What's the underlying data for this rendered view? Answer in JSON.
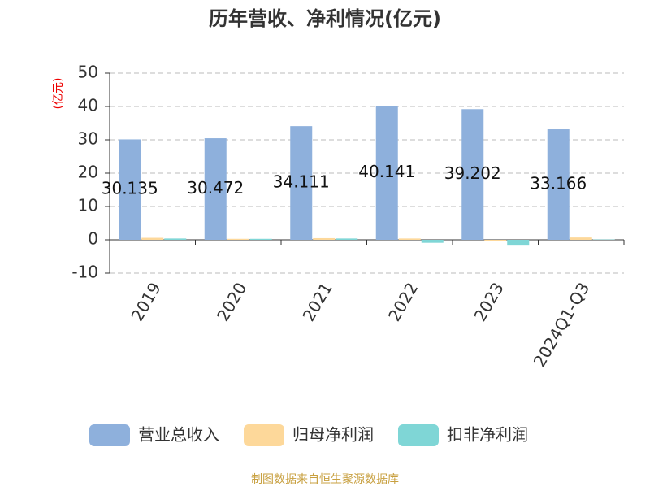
{
  "chart_data": {
    "type": "bar",
    "title": "历年营收、净利情况(亿元)",
    "y_label": "(亿元)",
    "categories": [
      "2019",
      "2020",
      "2021",
      "2022",
      "2023",
      "2024Q1-Q3"
    ],
    "series": [
      {
        "name": "营业总收入",
        "color": "#8eb0dc",
        "values": [
          30.135,
          30.472,
          34.111,
          40.141,
          39.202,
          33.166
        ],
        "show_labels": true
      },
      {
        "name": "归母净利润",
        "color": "#fdd89a",
        "values": [
          0.6,
          0.3,
          0.5,
          0.4,
          -0.4,
          0.7
        ]
      },
      {
        "name": "扣非净利润",
        "color": "#7fd6d6",
        "values": [
          0.4,
          0.3,
          0.4,
          -0.9,
          -1.5,
          0.1
        ]
      }
    ],
    "ylim": [
      -10,
      50
    ],
    "yticks": [
      -10,
      0,
      10,
      20,
      30,
      40,
      50
    ],
    "grid": true,
    "source": "制图数据来自恒生聚源数据库"
  }
}
